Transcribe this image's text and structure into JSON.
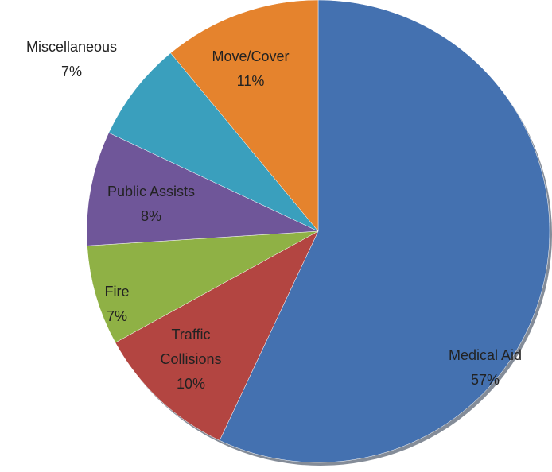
{
  "chart_data": {
    "type": "pie",
    "categories": [
      "Medical Aid",
      "Traffic Collisions",
      "Fire",
      "Public Assists",
      "Miscellaneous",
      "Move/Cover"
    ],
    "values": [
      57,
      10,
      7,
      8,
      7,
      11
    ],
    "value_labels": [
      "57%",
      "10%",
      "7%",
      "8%",
      "7%",
      "11%"
    ],
    "colors": [
      "#4471b0",
      "#b34541",
      "#8fb145",
      "#6f5699",
      "#3a9fbd",
      "#e5832d"
    ]
  }
}
